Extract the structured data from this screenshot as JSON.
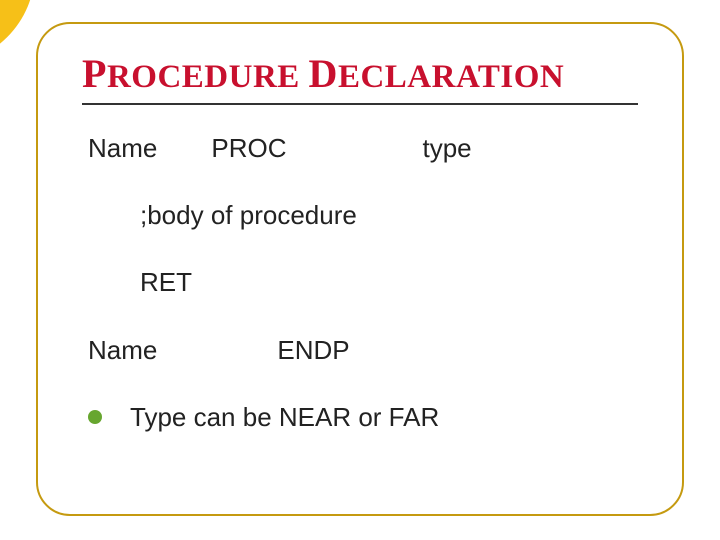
{
  "title": {
    "p_initial": "P",
    "p_rest": "ROCEDURE",
    "d_initial": "D",
    "d_rest": "ECLARATION",
    "color": "#c8102e"
  },
  "lines": {
    "l1_name": "Name",
    "l1_proc": "PROC",
    "l1_type": "type",
    "l2": ";body of procedure",
    "l3": "RET",
    "l4_name": "Name",
    "l4_endp": "ENDP"
  },
  "bullet": {
    "text": "Type can be NEAR or FAR",
    "color": "#67a62f"
  },
  "styles": {
    "border_color": "#c59a10",
    "rule_color": "#333333",
    "text_color": "#222222",
    "decor_red": "#e62722",
    "decor_yellow": "#f6c018",
    "body_fontsize": 26,
    "title_fontsize_small": 33,
    "title_fontsize_big": 40
  }
}
